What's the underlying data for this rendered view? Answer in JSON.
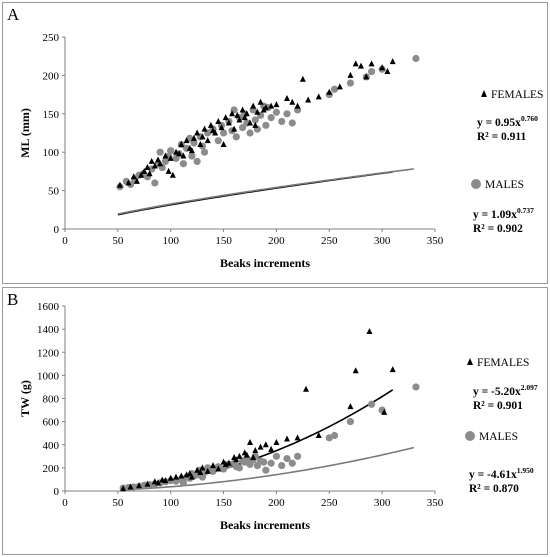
{
  "chart_data": [
    {
      "panel_label": "A",
      "type": "scatter",
      "xlabel": "Beaks increments",
      "ylabel": "ML (mm)",
      "xlim": [
        0,
        350
      ],
      "ylim": [
        0,
        250
      ],
      "x_ticks": [
        0,
        50,
        100,
        150,
        200,
        250,
        300,
        350
      ],
      "y_ticks": [
        0,
        50,
        100,
        150,
        200,
        250
      ],
      "grid": false,
      "legend_position": "right",
      "series": [
        {
          "name": "FEMALES",
          "marker": "triangle",
          "color": "#000000",
          "fit": {
            "type": "power",
            "a": 0.95,
            "b": 0.76,
            "equation_prefix": "y = 0.95x",
            "exponent_label": "0.760",
            "r2_label": "R² = 0.911",
            "x_range": [
              50,
              310
            ]
          },
          "x": [
            52,
            60,
            65,
            68,
            72,
            75,
            78,
            80,
            82,
            85,
            88,
            90,
            95,
            98,
            100,
            102,
            105,
            108,
            110,
            112,
            115,
            118,
            120,
            122,
            125,
            128,
            130,
            132,
            135,
            138,
            140,
            142,
            145,
            148,
            150,
            152,
            155,
            158,
            160,
            163,
            165,
            168,
            170,
            172,
            175,
            178,
            180,
            182,
            185,
            188,
            190,
            195,
            200,
            210,
            215,
            220,
            225,
            230,
            240,
            250,
            260,
            270,
            275,
            280,
            285,
            290,
            300,
            305,
            310
          ],
          "y": [
            57,
            60,
            68,
            62,
            70,
            75,
            80,
            72,
            88,
            82,
            90,
            85,
            95,
            75,
            92,
            70,
            100,
            98,
            110,
            95,
            115,
            105,
            102,
            118,
            125,
            110,
            120,
            130,
            115,
            135,
            128,
            125,
            140,
            132,
            110,
            145,
            138,
            150,
            130,
            148,
            142,
            155,
            145,
            150,
            138,
            160,
            135,
            152,
            165,
            155,
            158,
            160,
            162,
            170,
            165,
            160,
            195,
            168,
            172,
            178,
            185,
            200,
            215,
            212,
            198,
            215,
            210,
            205,
            218
          ]
        },
        {
          "name": "MALES",
          "marker": "circle",
          "color": "#8c8c8c",
          "fit": {
            "type": "power",
            "a": 1.09,
            "b": 0.737,
            "equation_prefix": "y = 1.09x",
            "exponent_label": "0.737",
            "r2_label": "R² = 0.902",
            "x_range": [
              50,
              330
            ]
          },
          "x": [
            52,
            58,
            62,
            66,
            70,
            74,
            78,
            82,
            85,
            88,
            90,
            92,
            95,
            98,
            100,
            105,
            108,
            110,
            112,
            115,
            118,
            120,
            122,
            125,
            128,
            130,
            132,
            135,
            140,
            145,
            148,
            150,
            155,
            158,
            160,
            162,
            165,
            168,
            170,
            172,
            175,
            178,
            180,
            182,
            185,
            188,
            190,
            192,
            195,
            200,
            205,
            210,
            215,
            220,
            250,
            255,
            270,
            285,
            290,
            300,
            332
          ],
          "y": [
            55,
            62,
            58,
            65,
            70,
            72,
            68,
            78,
            60,
            85,
            100,
            80,
            88,
            95,
            102,
            92,
            98,
            110,
            85,
            105,
            118,
            95,
            112,
            88,
            120,
            108,
            100,
            125,
            130,
            115,
            135,
            125,
            140,
            128,
            155,
            120,
            145,
            132,
            150,
            138,
            125,
            155,
            142,
            130,
            148,
            160,
            135,
            158,
            145,
            152,
            140,
            150,
            138,
            155,
            175,
            182,
            190,
            198,
            205,
            208,
            222
          ]
        }
      ]
    },
    {
      "panel_label": "B",
      "type": "scatter",
      "xlabel": "Beaks increments",
      "ylabel": "TW (g)",
      "xlim": [
        0,
        350
      ],
      "ylim": [
        0,
        1600
      ],
      "x_ticks": [
        0,
        50,
        100,
        150,
        200,
        250,
        300,
        350
      ],
      "y_ticks": [
        0,
        200,
        400,
        600,
        800,
        1000,
        1200,
        1400,
        1600
      ],
      "grid": false,
      "legend_position": "right",
      "series": [
        {
          "name": "FEMALES",
          "marker": "triangle",
          "color": "#000000",
          "fit": {
            "type": "power",
            "a": 0.00522,
            "b": 2.097,
            "equation_prefix": "y = -5.20x",
            "exponent_label": "2.097",
            "r2_label": "R² = 0.901",
            "x_range": [
              55,
              310
            ]
          },
          "x": [
            55,
            62,
            70,
            78,
            85,
            88,
            92,
            95,
            100,
            105,
            110,
            115,
            118,
            120,
            125,
            128,
            130,
            135,
            140,
            145,
            150,
            152,
            155,
            160,
            162,
            165,
            170,
            172,
            175,
            178,
            180,
            185,
            190,
            195,
            200,
            210,
            220,
            228,
            240,
            270,
            275,
            288,
            302,
            310
          ],
          "y": [
            20,
            35,
            45,
            60,
            80,
            70,
            95,
            90,
            110,
            120,
            130,
            140,
            150,
            120,
            180,
            160,
            200,
            170,
            220,
            190,
            250,
            230,
            240,
            290,
            270,
            300,
            330,
            310,
            420,
            290,
            350,
            380,
            400,
            360,
            420,
            450,
            460,
            880,
            480,
            730,
            1040,
            1380,
            680,
            1050
          ]
        },
        {
          "name": "MALES",
          "marker": "circle",
          "color": "#8c8c8c",
          "fit": {
            "type": "power",
            "a": 0.00461,
            "b": 1.95,
            "equation_prefix": "y = -4.61x",
            "exponent_label": "1.950",
            "r2_label": "R² = 0.870",
            "x_range": [
              55,
              330
            ]
          },
          "x": [
            55,
            60,
            65,
            70,
            75,
            80,
            85,
            90,
            95,
            100,
            105,
            110,
            112,
            115,
            118,
            120,
            122,
            125,
            128,
            130,
            132,
            135,
            140,
            145,
            150,
            155,
            160,
            162,
            165,
            168,
            170,
            172,
            175,
            178,
            180,
            182,
            185,
            188,
            190,
            195,
            200,
            205,
            210,
            215,
            220,
            250,
            255,
            270,
            290,
            300,
            332
          ],
          "y": [
            25,
            30,
            35,
            40,
            50,
            55,
            60,
            70,
            80,
            90,
            85,
            100,
            70,
            120,
            110,
            150,
            130,
            140,
            180,
            120,
            160,
            200,
            170,
            210,
            190,
            230,
            240,
            210,
            200,
            260,
            250,
            280,
            230,
            270,
            300,
            220,
            260,
            250,
            180,
            240,
            300,
            220,
            280,
            240,
            300,
            460,
            480,
            600,
            750,
            700,
            900
          ]
        }
      ]
    }
  ]
}
